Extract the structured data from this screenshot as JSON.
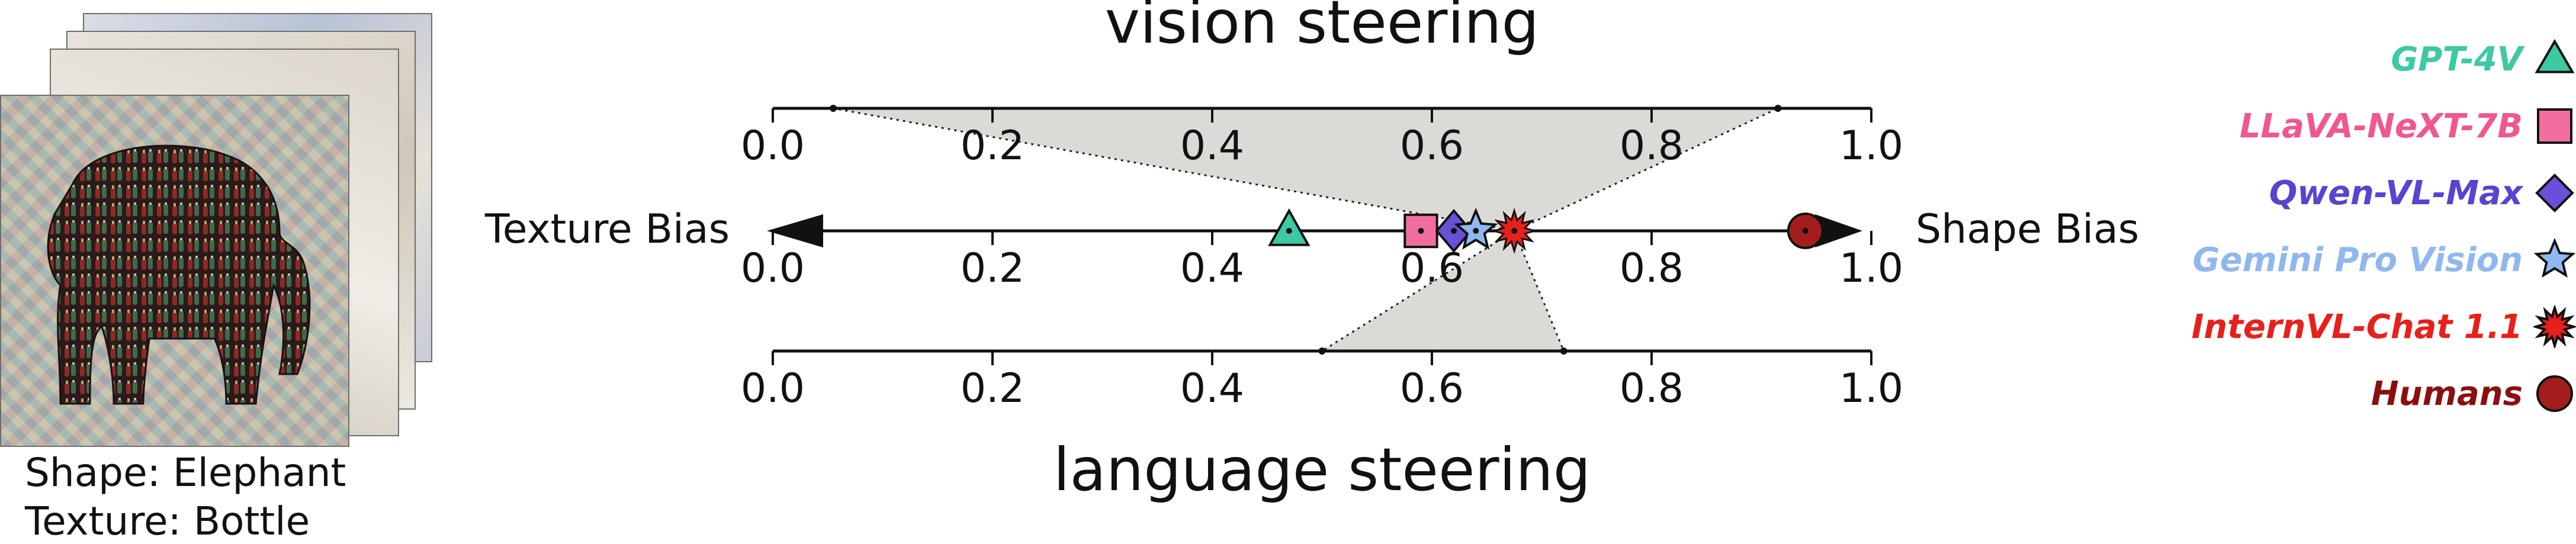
{
  "stimulus": {
    "shape_label": "Shape: Elephant",
    "texture_label": "Texture: Bottle"
  },
  "chart_data": {
    "type": "scatter",
    "title_top": "vision steering",
    "title_bottom": "language steering",
    "left_label": "Texture Bias",
    "right_label": "Shape Bias",
    "xlim": [
      0.0,
      1.0
    ],
    "ticks": [
      "0.0",
      "0.2",
      "0.4",
      "0.6",
      "0.8",
      "1.0"
    ],
    "tick_values": [
      0.0,
      0.2,
      0.4,
      0.6,
      0.8,
      1.0
    ],
    "vision_steering_range": [
      0.055,
      0.915
    ],
    "language_steering_range": [
      0.5,
      0.72
    ],
    "steering_origin": 0.675,
    "series": [
      {
        "name": "GPT-4V",
        "value": 0.47,
        "marker": "triangle",
        "color": "#3cc9a4",
        "text_color": "#3cc9a4"
      },
      {
        "name": "LLaVA-NeXT-7B",
        "value": 0.59,
        "marker": "square",
        "color": "#f36ea0",
        "text_color": "#f0578e"
      },
      {
        "name": "Qwen-VL-Max",
        "value": 0.62,
        "marker": "diamond",
        "color": "#6a4fd8",
        "text_color": "#5a43d1"
      },
      {
        "name": "Gemini Pro Vision",
        "value": 0.64,
        "marker": "star",
        "color": "#8fb8ee",
        "text_color": "#8fb8ee"
      },
      {
        "name": "InternVL-Chat 1.1",
        "value": 0.675,
        "marker": "burst",
        "color": "#e8201c",
        "text_color": "#e8201c"
      },
      {
        "name": "Humans",
        "value": 0.94,
        "marker": "circle",
        "color": "#a31d1d",
        "text_color": "#8b0f0f"
      }
    ],
    "grid": false,
    "legend_position": "right"
  }
}
